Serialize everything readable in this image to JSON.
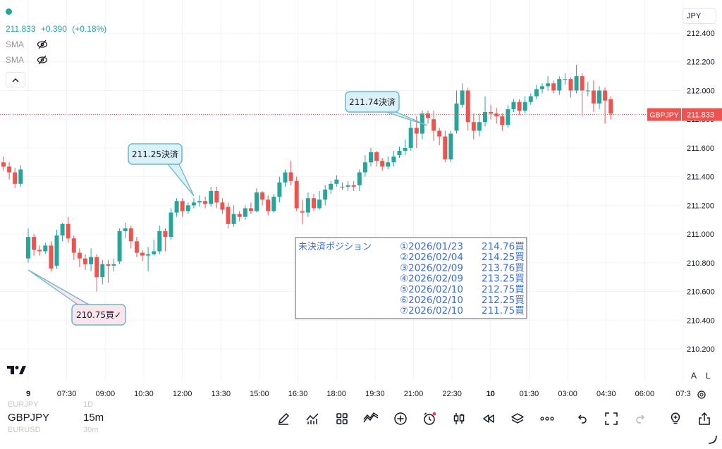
{
  "legend": {
    "price": "211.833",
    "change": "+0.390",
    "change_pct": "(+0.18%)",
    "indicators": [
      "SMA",
      "SMA"
    ],
    "color_up": "#26a69a",
    "color_down": "#ef5350"
  },
  "currency": "JPY",
  "scale_buttons": [
    "A",
    "L"
  ],
  "symbol_panel": {
    "items": [
      {
        "symbol": "EURJPY",
        "interval": "1D",
        "active": false
      },
      {
        "symbol": "GBPJPY",
        "interval": "15m",
        "active": true
      },
      {
        "symbol": "EURUSD",
        "interval": "30m",
        "active": false
      }
    ]
  },
  "toolbar": {
    "icons": [
      "pencil-icon",
      "indicators-icon",
      "grid-icon",
      "pattern-icon",
      "add-icon",
      "alert-icon",
      "candles-icon",
      "replay-icon",
      "layers-icon",
      "more-icon",
      "undo-icon",
      "fullscreen-icon",
      "redo-icon",
      "bulb-icon",
      "share-icon"
    ]
  },
  "chart_data": {
    "type": "candlestick",
    "symbol": "GBPJPY",
    "interval": "15m",
    "ylim": [
      210.0,
      212.55
    ],
    "y_ticks": [
      "212.400",
      "212.200",
      "212.000",
      "211.800",
      "211.600",
      "211.400",
      "211.200",
      "211.000",
      "210.800",
      "210.600",
      "210.400",
      "210.200"
    ],
    "y_tick_values": [
      212.4,
      212.2,
      212.0,
      211.8,
      211.6,
      211.4,
      211.2,
      211.0,
      210.8,
      210.6,
      210.4,
      210.2
    ],
    "x_ticks": [
      "9",
      "07:30",
      "09:00",
      "10:30",
      "12:00",
      "13:30",
      "15:00",
      "16:30",
      "18:00",
      "19:30",
      "21:00",
      "22:30",
      "10",
      "01:30",
      "03:00",
      "04:30",
      "06:00",
      "07:3"
    ],
    "x_tick_bold": [
      "9",
      "10"
    ],
    "last_price": 211.833,
    "last_price_label": "GBPJPY",
    "last_price_value": "211.833",
    "candles": [
      [
        211.5,
        211.47,
        211.54,
        211.44
      ],
      [
        211.47,
        211.43,
        211.5,
        211.38
      ],
      [
        211.43,
        211.35,
        211.46,
        211.32
      ],
      [
        211.35,
        211.45,
        211.48,
        211.33
      ],
      [
        210.83,
        210.98,
        211.04,
        210.8
      ],
      [
        210.98,
        210.89,
        211.0,
        210.85
      ],
      [
        210.89,
        210.88,
        210.92,
        210.85
      ],
      [
        210.88,
        210.92,
        210.94,
        210.86
      ],
      [
        210.92,
        210.76,
        210.95,
        210.74
      ],
      [
        210.78,
        210.99,
        211.03,
        210.76
      ],
      [
        210.99,
        211.07,
        211.08,
        210.95
      ],
      [
        211.07,
        210.97,
        211.12,
        210.94
      ],
      [
        210.97,
        210.87,
        210.99,
        210.82
      ],
      [
        210.87,
        210.83,
        210.9,
        210.77
      ],
      [
        210.83,
        210.79,
        210.86,
        210.75
      ],
      [
        210.79,
        210.84,
        210.9,
        210.74
      ],
      [
        210.84,
        210.7,
        210.86,
        210.6
      ],
      [
        210.7,
        210.79,
        210.82,
        210.65
      ],
      [
        210.79,
        210.78,
        210.82,
        210.66
      ],
      [
        210.78,
        210.79,
        210.83,
        210.74
      ],
      [
        210.81,
        211.02,
        211.04,
        210.79
      ],
      [
        211.02,
        211.04,
        211.08,
        210.97
      ],
      [
        211.04,
        210.95,
        211.06,
        210.9
      ],
      [
        210.95,
        210.87,
        210.98,
        210.84
      ],
      [
        210.87,
        210.85,
        210.89,
        210.81
      ],
      [
        210.85,
        210.86,
        210.91,
        210.74
      ],
      [
        210.86,
        210.88,
        210.96,
        210.85
      ],
      [
        210.88,
        211.02,
        211.06,
        210.86
      ],
      [
        211.02,
        210.98,
        211.04,
        210.88
      ],
      [
        210.98,
        211.15,
        211.18,
        210.96
      ],
      [
        211.15,
        211.23,
        211.25,
        211.12
      ],
      [
        211.23,
        211.16,
        211.25,
        211.12
      ],
      [
        211.16,
        211.2,
        211.22,
        211.14
      ],
      [
        211.2,
        211.22,
        211.25,
        211.18
      ],
      [
        211.22,
        211.23,
        211.27,
        211.19
      ],
      [
        211.23,
        211.21,
        211.26,
        211.18
      ],
      [
        211.21,
        211.3,
        211.33,
        211.19
      ],
      [
        211.3,
        211.22,
        211.33,
        211.18
      ],
      [
        211.22,
        211.17,
        211.25,
        211.14
      ],
      [
        211.19,
        211.07,
        211.22,
        211.04
      ],
      [
        211.07,
        211.14,
        211.2,
        211.05
      ],
      [
        211.14,
        211.12,
        211.16,
        211.09
      ],
      [
        211.12,
        211.18,
        211.2,
        211.1
      ],
      [
        211.18,
        211.16,
        211.22,
        211.14
      ],
      [
        211.16,
        211.29,
        211.32,
        211.15
      ],
      [
        211.29,
        211.24,
        211.3,
        211.2
      ],
      [
        211.24,
        211.16,
        211.27,
        211.13
      ],
      [
        211.16,
        211.26,
        211.28,
        211.15
      ],
      [
        211.26,
        211.36,
        211.4,
        211.22
      ],
      [
        211.36,
        211.43,
        211.45,
        211.33
      ],
      [
        211.43,
        211.37,
        211.51,
        211.34
      ],
      [
        211.37,
        211.18,
        211.4,
        211.16
      ],
      [
        211.16,
        211.15,
        211.24,
        211.07
      ],
      [
        211.15,
        211.25,
        211.29,
        211.12
      ],
      [
        211.25,
        211.18,
        211.28,
        211.16
      ],
      [
        211.18,
        211.24,
        211.3,
        211.17
      ],
      [
        211.24,
        211.31,
        211.34,
        211.2
      ],
      [
        211.31,
        211.35,
        211.37,
        211.28
      ],
      [
        211.35,
        211.38,
        211.41,
        211.33
      ],
      [
        211.33,
        211.33,
        211.36,
        211.31
      ],
      [
        211.33,
        211.34,
        211.37,
        211.3
      ],
      [
        211.34,
        211.33,
        211.37,
        211.3
      ],
      [
        211.34,
        211.43,
        211.45,
        211.3
      ],
      [
        211.43,
        211.5,
        211.55,
        211.4
      ],
      [
        211.5,
        211.57,
        211.6,
        211.47
      ],
      [
        211.57,
        211.51,
        211.58,
        211.47
      ],
      [
        211.51,
        211.47,
        211.53,
        211.44
      ],
      [
        211.47,
        211.5,
        211.54,
        211.45
      ],
      [
        211.5,
        211.54,
        211.58,
        211.47
      ],
      [
        211.55,
        211.58,
        211.61,
        211.53
      ],
      [
        211.58,
        211.6,
        211.66,
        211.55
      ],
      [
        211.6,
        211.74,
        211.79,
        211.58
      ],
      [
        211.74,
        211.7,
        211.82,
        211.6
      ],
      [
        211.7,
        211.84,
        211.86,
        211.66
      ],
      [
        211.84,
        211.81,
        211.86,
        211.77
      ],
      [
        211.8,
        211.72,
        211.86,
        211.65
      ],
      [
        211.72,
        211.68,
        211.74,
        211.62
      ],
      [
        211.68,
        211.52,
        211.72,
        211.5
      ],
      [
        211.52,
        211.7,
        211.72,
        211.5
      ],
      [
        211.72,
        211.91,
        212.0,
        211.7
      ],
      [
        211.9,
        212.0,
        212.05,
        211.88
      ],
      [
        212.0,
        211.78,
        212.02,
        211.72
      ],
      [
        211.78,
        211.72,
        211.84,
        211.66
      ],
      [
        211.72,
        211.78,
        211.84,
        211.68
      ],
      [
        211.78,
        211.85,
        211.96,
        211.75
      ],
      [
        211.85,
        211.84,
        211.9,
        211.8
      ],
      [
        211.84,
        211.82,
        211.88,
        211.77
      ],
      [
        211.82,
        211.76,
        211.84,
        211.72
      ],
      [
        211.76,
        211.87,
        211.9,
        211.74
      ],
      [
        211.87,
        211.92,
        211.94,
        211.85
      ],
      [
        211.92,
        211.86,
        211.94,
        211.83
      ],
      [
        211.86,
        211.92,
        211.96,
        211.84
      ],
      [
        211.92,
        211.96,
        211.98,
        211.9
      ],
      [
        211.96,
        212.01,
        212.04,
        211.94
      ],
      [
        212.01,
        212.03,
        212.05,
        211.98
      ],
      [
        212.03,
        212.05,
        212.1,
        212.0
      ],
      [
        212.05,
        212.0,
        212.07,
        211.98
      ],
      [
        212.0,
        212.08,
        212.1,
        211.97
      ],
      [
        212.08,
        212.08,
        212.12,
        212.04
      ],
      [
        212.08,
        212.0,
        212.09,
        211.95
      ],
      [
        212.0,
        212.1,
        212.18,
        211.98
      ],
      [
        212.1,
        212.0,
        212.12,
        211.82
      ],
      [
        212.0,
        212.0,
        212.06,
        211.96
      ],
      [
        212.0,
        211.91,
        212.07,
        211.85
      ],
      [
        211.91,
        212.0,
        212.03,
        211.87
      ],
      [
        212.0,
        211.93,
        212.02,
        211.77
      ],
      [
        211.94,
        211.84,
        211.96,
        211.8
      ]
    ],
    "callouts": [
      {
        "text": "210.75買✓",
        "price": 210.75,
        "variant": "buy"
      },
      {
        "text": "211.25決済",
        "price": 211.25,
        "variant": "settle"
      },
      {
        "text": "211.74決済",
        "price": 211.74,
        "variant": "settle"
      }
    ],
    "positions_box": {
      "title": "未決済ポジション",
      "rows": [
        {
          "no": "①",
          "date": "2026/01/23",
          "price": "214.76",
          "side": "買"
        },
        {
          "no": "②",
          "date": "2026/02/04",
          "price": "214.25",
          "side": "買"
        },
        {
          "no": "③",
          "date": "2026/02/09",
          "price": "213.76",
          "side": "買"
        },
        {
          "no": "④",
          "date": "2026/02/09",
          "price": "213.25",
          "side": "買"
        },
        {
          "no": "⑤",
          "date": "2026/02/10",
          "price": "212.75",
          "side": "買"
        },
        {
          "no": "⑥",
          "date": "2026/02/10",
          "price": "212.25",
          "side": "買"
        },
        {
          "no": "⑦",
          "date": "2026/02/10",
          "price": "211.75",
          "side": "買"
        }
      ]
    }
  }
}
